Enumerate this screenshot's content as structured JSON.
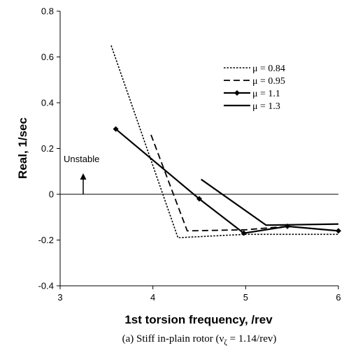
{
  "chart_data": {
    "type": "line",
    "xlabel": "1st torsion frequency, /rev",
    "ylabel": "Real, 1/sec",
    "xlim": [
      3,
      6
    ],
    "ylim": [
      -0.4,
      0.8
    ],
    "xticks": [
      "3",
      "4",
      "5",
      "6"
    ],
    "yticks": [
      "0.8",
      "0.6",
      "0.4",
      "0.2",
      "0",
      "-0.2",
      "-0.4"
    ],
    "grid": false,
    "legend_position": "top-right",
    "annotation": "Unstable",
    "caption": "(a) Stiff in-plain rotor (ν",
    "caption_sub": "ζ",
    "caption_tail": " = 1.14/rev)",
    "series": [
      {
        "name": "μ = 0.84",
        "style": "dotted",
        "x": [
          3.55,
          4.27,
          5.0,
          6.0
        ],
        "y": [
          0.65,
          -0.19,
          -0.175,
          -0.175
        ]
      },
      {
        "name": "μ = 0.95",
        "style": "dashed",
        "x": [
          3.98,
          4.37,
          5.0,
          5.45,
          6.0
        ],
        "y": [
          0.26,
          -0.16,
          -0.155,
          -0.14,
          -0.16
        ]
      },
      {
        "name": "μ = 1.1",
        "style": "solid-marker",
        "x": [
          3.6,
          4.5,
          4.98,
          5.45,
          6.0
        ],
        "y": [
          0.285,
          -0.02,
          -0.17,
          -0.14,
          -0.16
        ]
      },
      {
        "name": "μ = 1.3",
        "style": "solid",
        "x": [
          4.52,
          5.22,
          6.0
        ],
        "y": [
          0.065,
          -0.135,
          -0.13
        ]
      }
    ]
  }
}
